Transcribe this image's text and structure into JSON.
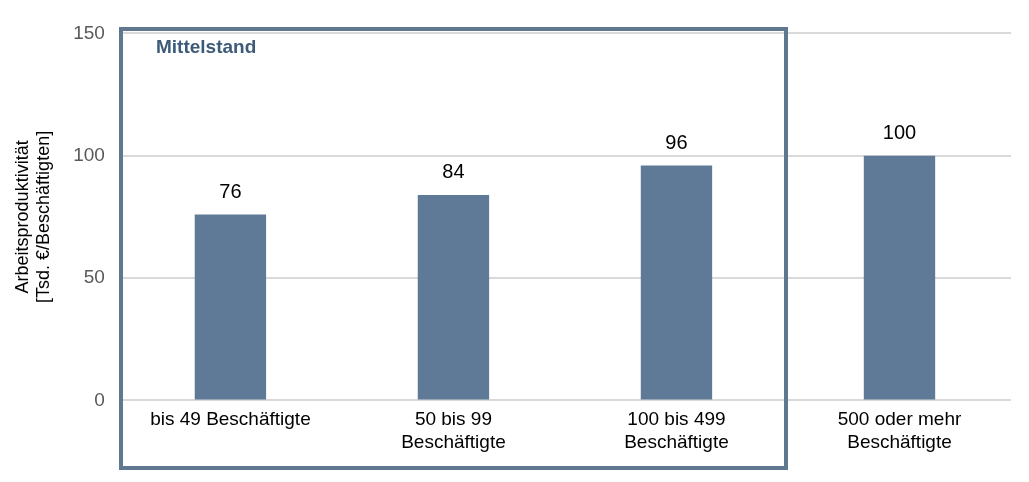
{
  "chart_data": {
    "type": "bar",
    "ylabel": "Arbeitsproduktivität\n[Tsd. €/Beschäftigten]",
    "categories": [
      "bis 49 Beschäftigte",
      "50 bis 99\nBeschäftigte",
      "100 bis 499\nBeschäftigte",
      "500 oder mehr\nBeschäftigte"
    ],
    "values": [
      76,
      84,
      96,
      100
    ],
    "color": "#5f7a96",
    "ylim": [
      0,
      150
    ],
    "yticks": [
      0,
      50,
      100,
      150
    ],
    "grid": "y",
    "data_labels": true,
    "legend": false,
    "annotations": [
      "Mittelstand"
    ]
  }
}
